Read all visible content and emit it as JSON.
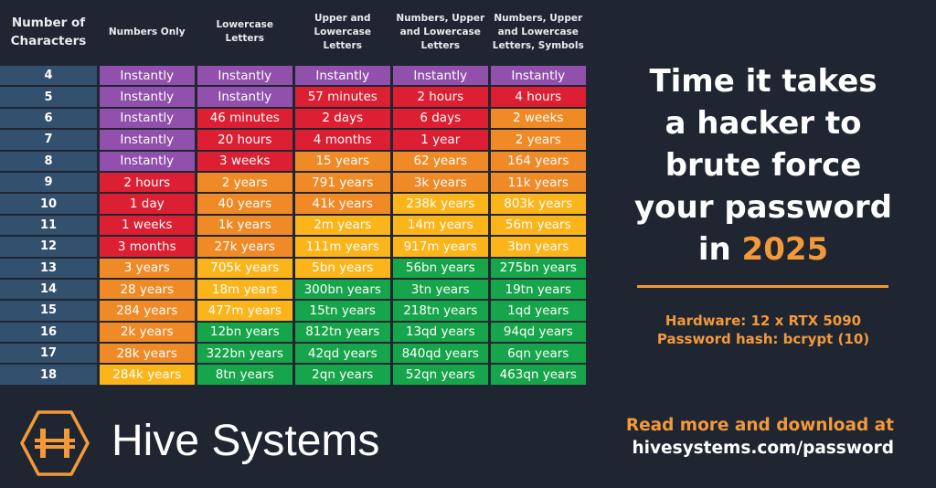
{
  "colors": {
    "P": "#9150ab",
    "R": "#dc1f33",
    "O": "#ef8a26",
    "Y": "#fbb51a",
    "G": "#16a54a",
    "accent": "#f3993a",
    "background": "#1f2631"
  },
  "headers": [
    "Number of Characters",
    "Numbers Only",
    "Lowercase Letters",
    "Upper and Lowercase Letters",
    "Numbers, Upper and Lowercase Letters",
    "Numbers, Upper and Lowercase Letters, Symbols"
  ],
  "rows": [
    {
      "n": "4",
      "cells": [
        "Instantly",
        "Instantly",
        "Instantly",
        "Instantly",
        "Instantly"
      ],
      "colors": [
        "P",
        "P",
        "P",
        "P",
        "P"
      ]
    },
    {
      "n": "5",
      "cells": [
        "Instantly",
        "Instantly",
        "57 minutes",
        "2 hours",
        "4 hours"
      ],
      "colors": [
        "P",
        "P",
        "R",
        "R",
        "R"
      ]
    },
    {
      "n": "6",
      "cells": [
        "Instantly",
        "46 minutes",
        "2 days",
        "6 days",
        "2 weeks"
      ],
      "colors": [
        "P",
        "R",
        "R",
        "R",
        "O"
      ]
    },
    {
      "n": "7",
      "cells": [
        "Instantly",
        "20 hours",
        "4 months",
        "1 year",
        "2 years"
      ],
      "colors": [
        "P",
        "R",
        "R",
        "R",
        "O"
      ]
    },
    {
      "n": "8",
      "cells": [
        "Instantly",
        "3 weeks",
        "15 years",
        "62 years",
        "164 years"
      ],
      "colors": [
        "P",
        "R",
        "O",
        "O",
        "O"
      ]
    },
    {
      "n": "9",
      "cells": [
        "2 hours",
        "2 years",
        "791 years",
        "3k years",
        "11k years"
      ],
      "colors": [
        "R",
        "O",
        "O",
        "O",
        "O"
      ]
    },
    {
      "n": "10",
      "cells": [
        "1 day",
        "40 years",
        "41k years",
        "238k years",
        "803k years"
      ],
      "colors": [
        "R",
        "O",
        "O",
        "Y",
        "Y"
      ]
    },
    {
      "n": "11",
      "cells": [
        "1 weeks",
        "1k years",
        "2m years",
        "14m years",
        "56m years"
      ],
      "colors": [
        "R",
        "O",
        "Y",
        "Y",
        "Y"
      ]
    },
    {
      "n": "12",
      "cells": [
        "3 months",
        "27k years",
        "111m years",
        "917m years",
        "3bn years"
      ],
      "colors": [
        "R",
        "O",
        "Y",
        "Y",
        "Y"
      ]
    },
    {
      "n": "13",
      "cells": [
        "3 years",
        "705k years",
        "5bn years",
        "56bn years",
        "275bn years"
      ],
      "colors": [
        "O",
        "Y",
        "Y",
        "G",
        "G"
      ]
    },
    {
      "n": "14",
      "cells": [
        "28 years",
        "18m years",
        "300bn years",
        "3tn years",
        "19tn years"
      ],
      "colors": [
        "O",
        "Y",
        "G",
        "G",
        "G"
      ]
    },
    {
      "n": "15",
      "cells": [
        "284 years",
        "477m years",
        "15tn years",
        "218tn years",
        "1qd years"
      ],
      "colors": [
        "O",
        "Y",
        "G",
        "G",
        "G"
      ]
    },
    {
      "n": "16",
      "cells": [
        "2k years",
        "12bn years",
        "812tn years",
        "13qd years",
        "94qd years"
      ],
      "colors": [
        "O",
        "G",
        "G",
        "G",
        "G"
      ]
    },
    {
      "n": "17",
      "cells": [
        "28k years",
        "322bn years",
        "42qd years",
        "840qd years",
        "6qn years"
      ],
      "colors": [
        "O",
        "G",
        "G",
        "G",
        "G"
      ]
    },
    {
      "n": "18",
      "cells": [
        "284k years",
        "8tn years",
        "2qn years",
        "52qn years",
        "463qn years"
      ],
      "colors": [
        "Y",
        "G",
        "G",
        "G",
        "G"
      ]
    }
  ],
  "title": {
    "lines": [
      "Time it takes",
      "a hacker to",
      "brute force",
      "your password",
      "in "
    ],
    "year": "2025"
  },
  "hardware": "Hardware: 12 x RTX 5090",
  "hash": "Password hash: bcrypt (10)",
  "footer": {
    "read_more": "Read more and download at",
    "url": "hivesystems.com/password"
  },
  "brand": {
    "name": "Hive Systems",
    "logo_icon": "hive-hexagon-logo"
  }
}
